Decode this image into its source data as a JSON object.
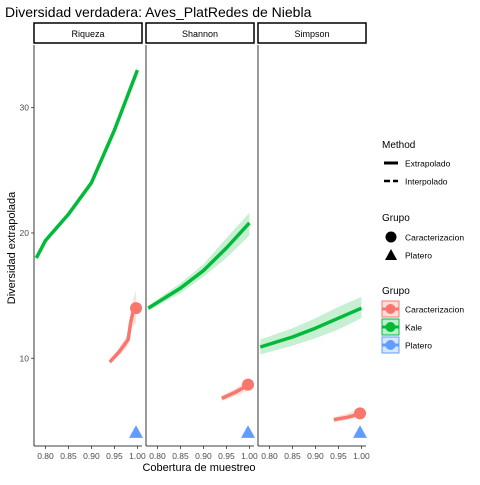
{
  "chart_data": {
    "type": "line",
    "title": "Diversidad verdadera: Aves_PlatRedes de Niebla",
    "xlabel": "Cobertura de muestreo",
    "ylabel": "Diversidad extrapolada",
    "xlim": [
      0.775,
      1.01
    ],
    "ylim": [
      3,
      35
    ],
    "x_ticks": [
      0.8,
      0.85,
      0.9,
      0.95,
      1.0
    ],
    "x_tick_labels": [
      "0.80",
      "0.85",
      "0.90",
      "0.95",
      "1.00"
    ],
    "y_ticks": [
      10,
      20,
      30
    ],
    "y_tick_labels": [
      "10",
      "20",
      "30"
    ],
    "grid": false,
    "facets": [
      {
        "label": "Riqueza",
        "series": [
          {
            "name": "Kale",
            "method": "Extrapolado",
            "x": [
              0.78,
              0.8,
              0.85,
              0.9,
              0.95,
              1.0
            ],
            "y": [
              18.0,
              19.4,
              21.5,
              24.0,
              28.2,
              33.0
            ],
            "lower": [
              17.9,
              19.3,
              21.4,
              23.9,
              28.0,
              32.6
            ],
            "upper": [
              18.1,
              19.5,
              21.6,
              24.1,
              28.4,
              33.3
            ]
          },
          {
            "name": "Caracterizacion",
            "method": "Interpolado",
            "x": [
              0.94,
              0.96,
              0.98,
              0.985
            ],
            "y": [
              9.7,
              10.5,
              11.5,
              12.8
            ],
            "lower": [
              9.5,
              10.2,
              11.0,
              12.0
            ],
            "upper": [
              9.9,
              10.8,
              12.0,
              13.6
            ]
          },
          {
            "name": "Caracterizacion",
            "method": "Extrapolado",
            "x": [
              0.985,
              0.99,
              0.997
            ],
            "y": [
              12.8,
              13.6,
              14.0
            ],
            "lower": [
              12.0,
              12.6,
              12.8
            ],
            "upper": [
              13.6,
              14.6,
              15.4
            ]
          }
        ],
        "points": [
          {
            "name": "Caracterizacion",
            "shape": "circle",
            "x": 0.997,
            "y": 14.0
          },
          {
            "name": "Platero",
            "shape": "triangle",
            "x": 0.997,
            "y": 4.1
          }
        ]
      },
      {
        "label": "Shannon",
        "series": [
          {
            "name": "Kale",
            "method": "Extrapolado",
            "x": [
              0.78,
              0.85,
              0.9,
              0.95,
              1.0
            ],
            "y": [
              14.0,
              15.6,
              17.0,
              18.8,
              20.8
            ],
            "lower": [
              13.8,
              15.2,
              16.5,
              18.0,
              19.8
            ],
            "upper": [
              14.2,
              16.0,
              17.5,
              19.6,
              21.6
            ]
          },
          {
            "name": "Caracterizacion",
            "method": "Interpolado",
            "x": [
              0.94,
              0.97,
              0.99
            ],
            "y": [
              6.8,
              7.3,
              7.7
            ],
            "lower": [
              6.6,
              7.0,
              7.3
            ],
            "upper": [
              7.0,
              7.6,
              8.1
            ]
          },
          {
            "name": "Caracterizacion",
            "method": "Extrapolado",
            "x": [
              0.99,
              0.997
            ],
            "y": [
              7.7,
              7.9
            ],
            "lower": [
              7.3,
              7.4
            ],
            "upper": [
              8.1,
              8.4
            ]
          }
        ],
        "points": [
          {
            "name": "Caracterizacion",
            "shape": "circle",
            "x": 0.997,
            "y": 7.9
          },
          {
            "name": "Platero",
            "shape": "triangle",
            "x": 0.997,
            "y": 4.1
          }
        ]
      },
      {
        "label": "Simpson",
        "series": [
          {
            "name": "Kale",
            "method": "Extrapolado",
            "x": [
              0.78,
              0.85,
              0.9,
              0.95,
              1.0
            ],
            "y": [
              10.9,
              11.7,
              12.4,
              13.2,
              14.0
            ],
            "lower": [
              10.3,
              11.0,
              11.6,
              12.3,
              13.2
            ],
            "upper": [
              11.5,
              12.4,
              13.2,
              14.1,
              14.9
            ]
          },
          {
            "name": "Caracterizacion",
            "method": "Interpolado",
            "x": [
              0.94,
              0.97,
              0.99
            ],
            "y": [
              5.1,
              5.3,
              5.5
            ],
            "lower": [
              4.9,
              5.1,
              5.2
            ],
            "upper": [
              5.3,
              5.6,
              5.9
            ]
          },
          {
            "name": "Caracterizacion",
            "method": "Extrapolado",
            "x": [
              0.99,
              0.997
            ],
            "y": [
              5.5,
              5.6
            ],
            "lower": [
              5.2,
              5.2
            ],
            "upper": [
              5.9,
              6.1
            ]
          }
        ],
        "points": [
          {
            "name": "Caracterizacion",
            "shape": "circle",
            "x": 0.997,
            "y": 5.6
          },
          {
            "name": "Platero",
            "shape": "triangle",
            "x": 0.997,
            "y": 4.1
          }
        ]
      }
    ],
    "colors": {
      "Caracterizacion": "#F8766D",
      "Kale": "#00BA38",
      "Platero": "#619CFF"
    },
    "legend": {
      "placement": "right",
      "method_title": "Method",
      "method_items": [
        "Extrapolado",
        "Interpolado"
      ],
      "shape_title": "Grupo",
      "shape_items": [
        {
          "label": "Caracterizacion",
          "shape": "circle"
        },
        {
          "label": "Platero",
          "shape": "triangle"
        }
      ],
      "color_title": "Grupo",
      "color_items": [
        "Caracterizacion",
        "Kale",
        "Platero"
      ]
    }
  }
}
